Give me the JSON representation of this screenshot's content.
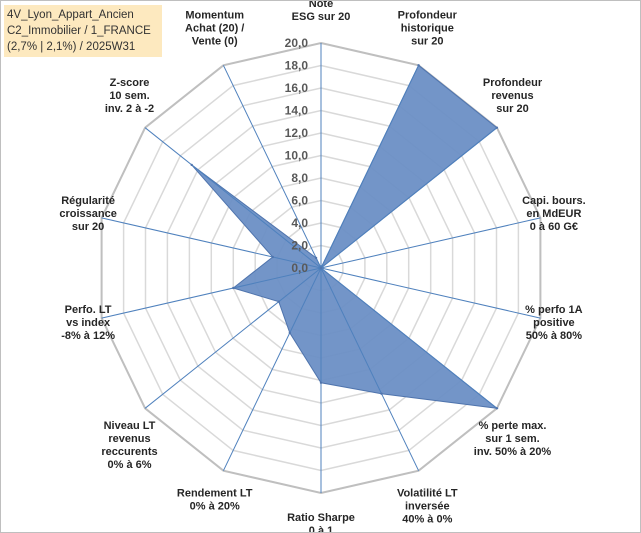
{
  "info_box": {
    "line1": "4V_Lyon_Appart_Ancien",
    "line2": "C2_Immobilier / 1_FRANCE",
    "line3": "(2,7% | 2,1%) / 2025W31"
  },
  "chart_data": {
    "type": "radar",
    "title": "",
    "rmin": 0,
    "rmax": 20,
    "tick_step": 2,
    "tick_labels": [
      "0,0",
      "2,0",
      "4,0",
      "6,0",
      "8,0",
      "10,0",
      "12,0",
      "14,0",
      "16,0",
      "18,0",
      "20,0"
    ],
    "gridlines": true,
    "colors": {
      "fill": "#6b8fc5",
      "stroke": "#4f74ad",
      "grid": "#d9d9d9",
      "spokes": "#4f81bd"
    },
    "categories": [
      [
        "Note",
        "ESG sur 20"
      ],
      [
        "Profondeur",
        "historique",
        "sur 20"
      ],
      [
        "Profondeur",
        "revenus",
        "sur 20"
      ],
      [
        "Capi. bours.",
        "en MdEUR",
        "0 à 60 G€"
      ],
      [
        "% perfo 1A",
        "positive",
        "50% à 80%"
      ],
      [
        "% perte max.",
        "sur 1 sem.",
        "inv. 50% à 20%"
      ],
      [
        "Volatilité LT",
        "inversée",
        "40% à 0%"
      ],
      [
        "Ratio Sharpe",
        "0 à 1"
      ],
      [
        "Rendement LT",
        "0% à 20%"
      ],
      [
        "Niveau LT",
        "revenus",
        "reccurents",
        "0% à 6%"
      ],
      [
        "Perfo. LT",
        "vs index",
        "-8% à 12%"
      ],
      [
        "Régularité",
        "croissance",
        "sur 20"
      ],
      [
        "Z-score",
        "10 sem.",
        "inv. 2 à -2"
      ],
      [
        "Momentum",
        "Achat (20) /",
        "Vente (0)"
      ]
    ],
    "values": [
      0,
      20,
      20,
      0,
      0,
      20,
      12.4,
      10.2,
      6.4,
      4.8,
      8.0,
      4.4,
      14.7,
      1.0
    ]
  }
}
